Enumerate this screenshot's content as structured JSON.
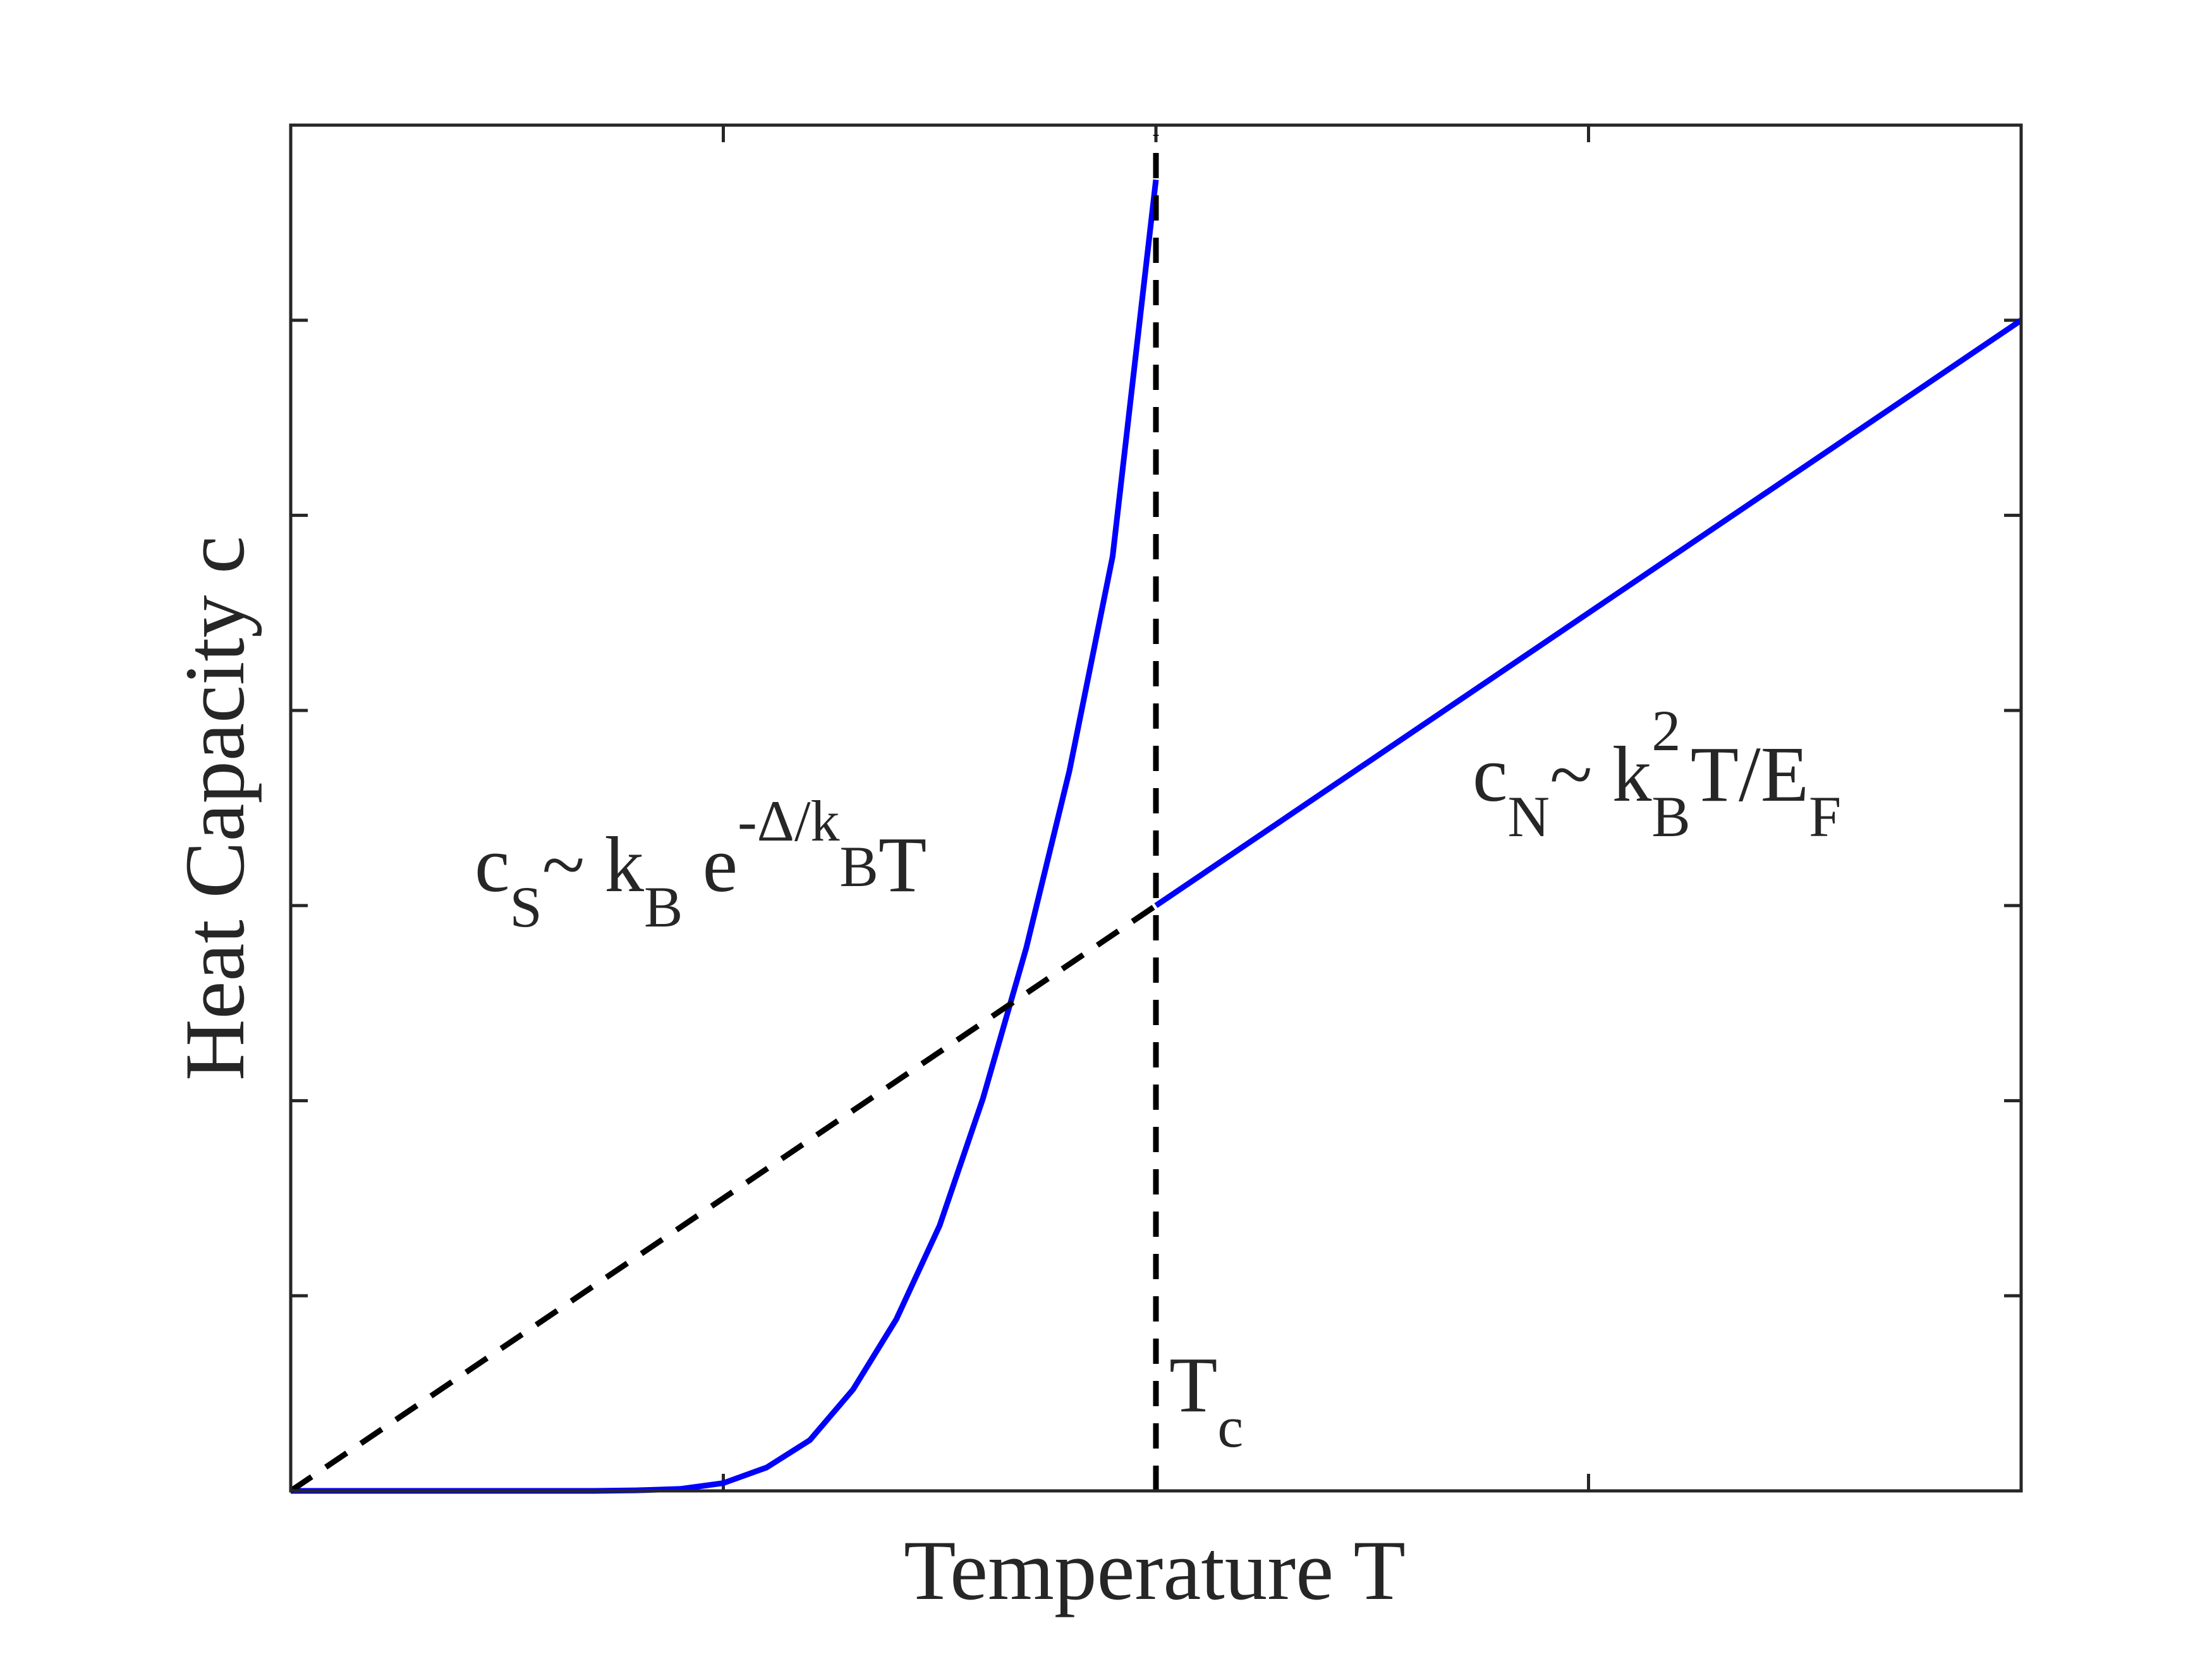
{
  "chart_data": {
    "type": "line",
    "xlabel": "Temperature  T",
    "ylabel": "Heat Capacity c",
    "xlim": [
      0,
      2
    ],
    "ylim": [
      0,
      7
    ],
    "xticks": [
      0.5,
      1,
      1.5
    ],
    "yticks": [
      1,
      2,
      3,
      4,
      5,
      6
    ],
    "series": [
      {
        "x": [
          0,
          0.05,
          0.1,
          0.15,
          0.2,
          0.25,
          0.3,
          0.35,
          0.4,
          0.45,
          0.5,
          0.55,
          0.6,
          0.65,
          0.7,
          0.75,
          0.8,
          0.85,
          0.9,
          0.95,
          1
        ],
        "values": [
          0,
          0,
          0,
          0,
          0,
          0,
          0,
          0,
          0.003,
          0.01,
          0.04,
          0.12,
          0.26,
          0.52,
          0.88,
          1.36,
          2.01,
          2.78,
          3.69,
          4.79,
          6.72
        ],
        "color": "#0000ff",
        "dashed": false
      },
      {
        "x": [
          1,
          2
        ],
        "values": [
          3,
          6
        ],
        "color": "#0000ff",
        "dashed": false
      },
      {
        "x": [
          0,
          1
        ],
        "values": [
          0,
          3
        ],
        "color": "#000000",
        "dashed": true
      },
      {
        "x": [
          1,
          1
        ],
        "values": [
          0,
          6.95
        ],
        "color": "#000000",
        "dashed": true
      }
    ],
    "annotations": [
      {
        "segments": [
          {
            "text": "c",
            "script": "base"
          },
          {
            "text": "S",
            "script": "sub"
          },
          {
            "text": "~ k",
            "script": "base"
          },
          {
            "text": "B",
            "script": "sub"
          },
          {
            "text": " e",
            "script": "base"
          },
          {
            "text": "-Δ/k",
            "script": "sup"
          },
          {
            "text": "B",
            "script": "supsub"
          },
          {
            "text": "T",
            "script": "base"
          }
        ]
      },
      {
        "segments": [
          {
            "text": "c",
            "script": "base"
          },
          {
            "text": "N",
            "script": "sub"
          },
          {
            "text": "~ k",
            "script": "base"
          },
          {
            "text": "2",
            "script": "sup"
          },
          {
            "text": "B",
            "script": "sub-stacked"
          },
          {
            "text": "T/E",
            "script": "base"
          },
          {
            "text": "F",
            "script": "sub"
          }
        ]
      },
      {
        "segments": [
          {
            "text": "T",
            "script": "base"
          },
          {
            "text": "c",
            "script": "sub"
          }
        ]
      }
    ]
  }
}
